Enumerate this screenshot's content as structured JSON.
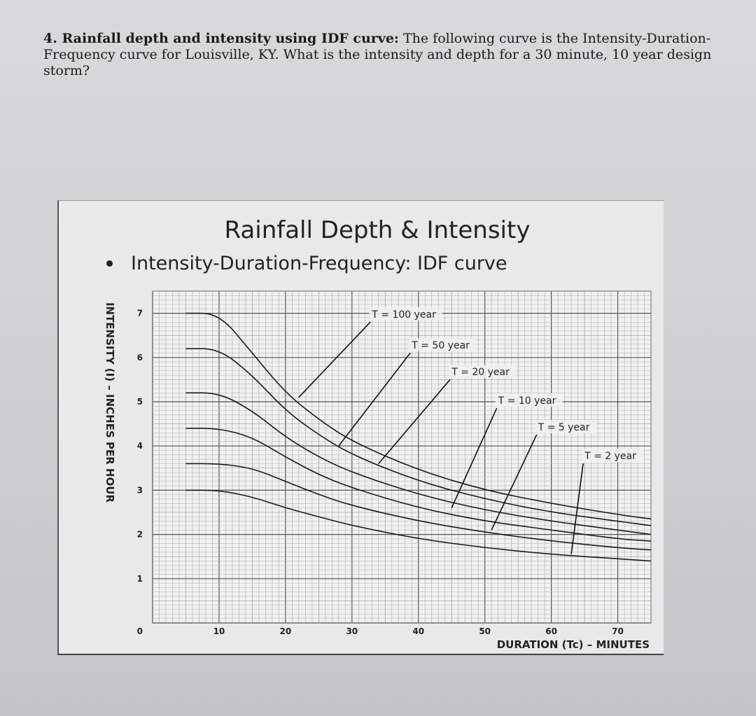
{
  "question": {
    "lead": "4. Rainfall depth and intensity using IDF curve:",
    "body": " The following curve is the Intensity-Duration-Frequency curve for Louisville, KY.  What is the intensity and depth for a 30 minute, 10 year design storm?"
  },
  "slide": {
    "title": "Rainfall Depth & Intensity",
    "bullet": "Intensity-Duration-Frequency:  IDF curve"
  },
  "chart_data": {
    "type": "line",
    "title": "Rainfall Depth & Intensity",
    "subtitle": "Intensity-Duration-Frequency:  IDF curve",
    "xlabel": "DURATION  (Tc)   –   MINUTES",
    "ylabel": "INTENSITY  (I)  –  INCHES PER HOUR",
    "xlim": [
      0,
      75
    ],
    "ylim": [
      0,
      7.5
    ],
    "xticks": [
      10,
      20,
      30,
      40,
      50,
      60,
      70
    ],
    "yticks": [
      0,
      1,
      2,
      3,
      4,
      5,
      6,
      7
    ],
    "grid": true,
    "series": [
      {
        "name": "T = 100 year",
        "x": [
          5,
          10,
          15,
          20,
          25,
          30,
          40,
          50,
          60,
          70,
          75
        ],
        "y": [
          7.0,
          7.0,
          6.1,
          5.2,
          4.6,
          4.1,
          3.45,
          3.0,
          2.7,
          2.45,
          2.35
        ]
      },
      {
        "name": "T = 50 year",
        "x": [
          5,
          10,
          15,
          20,
          25,
          30,
          40,
          50,
          60,
          70,
          75
        ],
        "y": [
          6.2,
          6.2,
          5.6,
          4.8,
          4.25,
          3.8,
          3.2,
          2.8,
          2.5,
          2.3,
          2.2
        ]
      },
      {
        "name": "T = 20 year",
        "x": [
          5,
          10,
          15,
          20,
          25,
          30,
          40,
          50,
          60,
          70,
          75
        ],
        "y": [
          5.2,
          5.2,
          4.8,
          4.2,
          3.75,
          3.4,
          2.9,
          2.55,
          2.3,
          2.1,
          2.0
        ]
      },
      {
        "name": "T = 10 year",
        "x": [
          5,
          10,
          15,
          20,
          25,
          30,
          40,
          50,
          60,
          70,
          75
        ],
        "y": [
          4.4,
          4.4,
          4.2,
          3.75,
          3.35,
          3.05,
          2.6,
          2.3,
          2.1,
          1.9,
          1.85
        ]
      },
      {
        "name": "T = 5 year",
        "x": [
          5,
          10,
          15,
          20,
          25,
          30,
          40,
          50,
          60,
          70,
          75
        ],
        "y": [
          3.6,
          3.6,
          3.5,
          3.2,
          2.9,
          2.65,
          2.3,
          2.05,
          1.85,
          1.7,
          1.65
        ]
      },
      {
        "name": "T = 2 year",
        "x": [
          5,
          10,
          15,
          20,
          25,
          30,
          40,
          50,
          60,
          70,
          75
        ],
        "y": [
          3.0,
          3.0,
          2.85,
          2.6,
          2.4,
          2.2,
          1.9,
          1.7,
          1.55,
          1.45,
          1.4
        ]
      }
    ],
    "annotations": [
      {
        "text": "T = 100 year",
        "x": 33,
        "y": 6.9,
        "pointer_to": [
          22,
          5.1
        ]
      },
      {
        "text": "T = 50 year",
        "x": 39,
        "y": 6.2,
        "pointer_to": [
          28,
          4.0
        ]
      },
      {
        "text": "T = 20 year",
        "x": 45,
        "y": 5.6,
        "pointer_to": [
          34,
          3.6
        ]
      },
      {
        "text": "T = 10 year",
        "x": 52,
        "y": 4.95,
        "pointer_to": [
          45,
          2.6
        ]
      },
      {
        "text": "T = 5 year",
        "x": 58,
        "y": 4.35,
        "pointer_to": [
          51,
          2.1
        ]
      },
      {
        "text": "T = 2 year",
        "x": 65,
        "y": 3.7,
        "pointer_to": [
          63,
          1.55
        ]
      }
    ]
  }
}
